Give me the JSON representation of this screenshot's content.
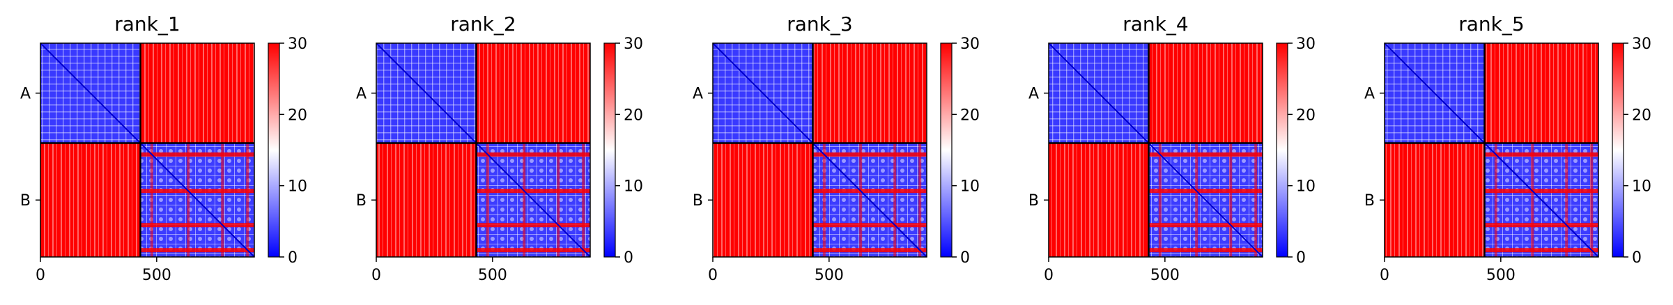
{
  "figure": {
    "colormap": "bwr",
    "colors": {
      "low": "#0000ff",
      "mid": "#ffffff",
      "high": "#ff0000",
      "divider": "#000000"
    }
  },
  "chart_data": [
    {
      "type": "heatmap",
      "title": "rank_1",
      "xticks": [
        0,
        500
      ],
      "yticklabels": [
        "A",
        "B"
      ],
      "chain_boundaries": [
        0,
        430,
        920
      ],
      "colorbar": {
        "range": [
          0,
          30
        ],
        "ticks": [
          0,
          10,
          20,
          30
        ]
      },
      "blocks": {
        "A-A": "low (blue)",
        "A-B": "high (red, ~28-30)",
        "B-A": "high (red, ~28-30)",
        "B-B": "mixed blue/red banded"
      }
    },
    {
      "type": "heatmap",
      "title": "rank_2",
      "xticks": [
        0,
        500
      ],
      "yticklabels": [
        "A",
        "B"
      ],
      "chain_boundaries": [
        0,
        430,
        920
      ],
      "colorbar": {
        "range": [
          0,
          30
        ],
        "ticks": [
          0,
          10,
          20,
          30
        ]
      },
      "blocks": {
        "A-A": "low (blue)",
        "A-B": "high (red, ~26-30)",
        "B-A": "high (red, ~26-30)",
        "B-B": "mixed blue/red banded"
      }
    },
    {
      "type": "heatmap",
      "title": "rank_3",
      "xticks": [
        0,
        500
      ],
      "yticklabels": [
        "A",
        "B"
      ],
      "chain_boundaries": [
        0,
        430,
        920
      ],
      "colorbar": {
        "range": [
          0,
          30
        ],
        "ticks": [
          0,
          10,
          20,
          30
        ]
      },
      "blocks": {
        "A-A": "low (blue)",
        "A-B": "high (red, ~28-30)",
        "B-A": "high (red, ~28-30)",
        "B-B": "mixed blue/red banded"
      }
    },
    {
      "type": "heatmap",
      "title": "rank_4",
      "xticks": [
        0,
        500
      ],
      "yticklabels": [
        "A",
        "B"
      ],
      "chain_boundaries": [
        0,
        430,
        920
      ],
      "colorbar": {
        "range": [
          0,
          30
        ],
        "ticks": [
          0,
          10,
          20,
          30
        ]
      },
      "blocks": {
        "A-A": "low (blue)",
        "A-B": "high (red, ~28-30)",
        "B-A": "high (red, ~28-30)",
        "B-B": "mixed blue/red banded"
      }
    },
    {
      "type": "heatmap",
      "title": "rank_5",
      "xticks": [
        0,
        500
      ],
      "yticklabels": [
        "A",
        "B"
      ],
      "chain_boundaries": [
        0,
        430,
        920
      ],
      "colorbar": {
        "range": [
          0,
          30
        ],
        "ticks": [
          0,
          10,
          20,
          30
        ]
      },
      "blocks": {
        "A-A": "low (blue)",
        "A-B": "high (red, ~28-30)",
        "B-A": "high (red, ~28-30)",
        "B-B": "mixed blue/red banded"
      }
    }
  ]
}
